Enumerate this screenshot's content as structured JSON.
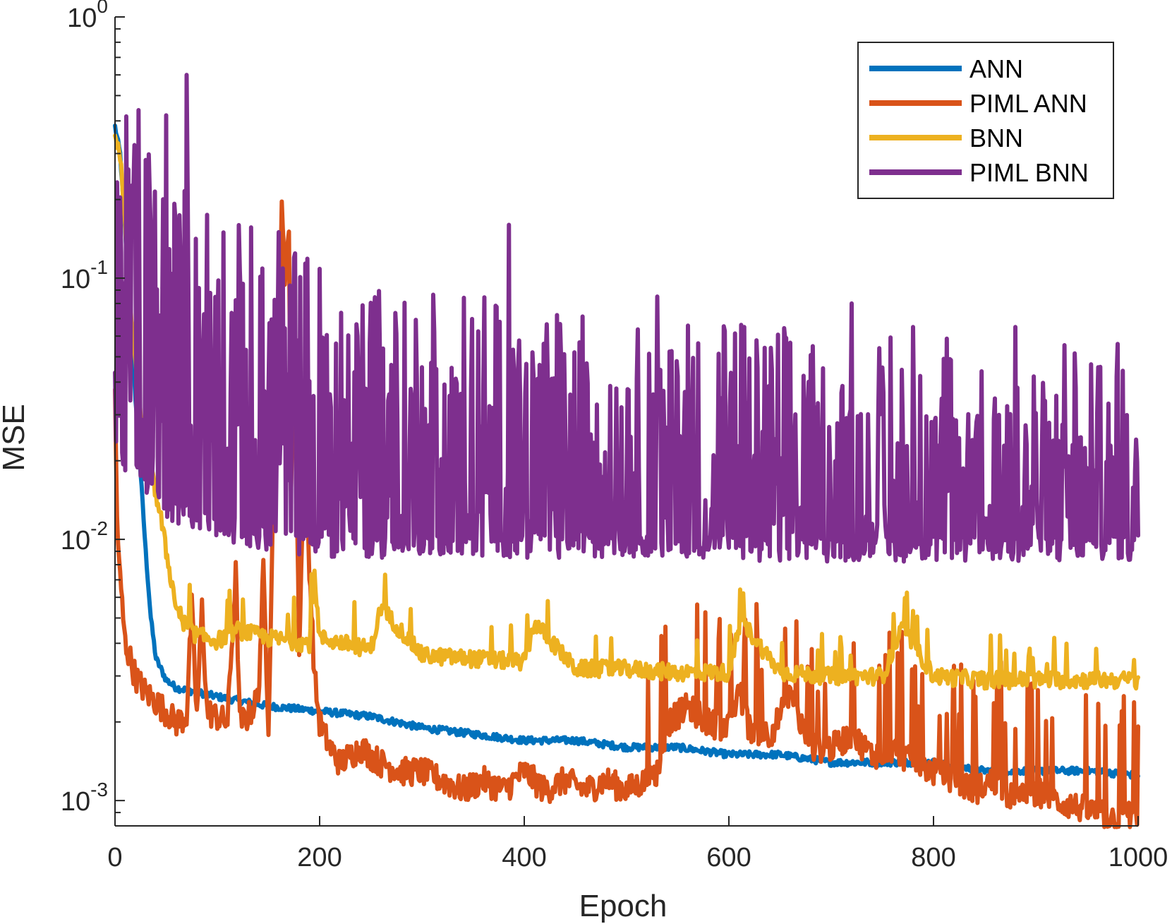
{
  "chart_data": {
    "type": "line",
    "title": "",
    "xlabel": "Epoch",
    "ylabel": "MSE",
    "xlim": [
      0,
      1000
    ],
    "ylim": [
      0.0008,
      1
    ],
    "yscale": "log",
    "grid": false,
    "legend_position": "top-right",
    "x_ticks": [
      {
        "value": 0,
        "label": "0"
      },
      {
        "value": 200,
        "label": "200"
      },
      {
        "value": 400,
        "label": "400"
      },
      {
        "value": 600,
        "label": "600"
      },
      {
        "value": 800,
        "label": "800"
      },
      {
        "value": 1000,
        "label": "1000"
      }
    ],
    "y_ticks": [
      {
        "value": 1,
        "base": "10",
        "exp": "0"
      },
      {
        "value": 0.1,
        "base": "10",
        "exp": "-1"
      },
      {
        "value": 0.01,
        "base": "10",
        "exp": "-2"
      },
      {
        "value": 0.001,
        "base": "10",
        "exp": "-3"
      }
    ],
    "series": [
      {
        "name": "ANN",
        "color": "#0072BD",
        "x": [
          0,
          5,
          10,
          15,
          20,
          25,
          30,
          35,
          40,
          50,
          60,
          80,
          100,
          150,
          200,
          250,
          300,
          350,
          400,
          450,
          500,
          550,
          600,
          650,
          700,
          750,
          800,
          850,
          900,
          950,
          1000
        ],
        "values": [
          0.38,
          0.3,
          0.15,
          0.07,
          0.035,
          0.018,
          0.009,
          0.005,
          0.0035,
          0.0029,
          0.0027,
          0.0026,
          0.0025,
          0.0023,
          0.0022,
          0.0021,
          0.0019,
          0.0018,
          0.0017,
          0.0017,
          0.0016,
          0.0016,
          0.0015,
          0.0015,
          0.0014,
          0.0014,
          0.0014,
          0.0013,
          0.0013,
          0.0013,
          0.00125
        ]
      },
      {
        "name": "PIML ANN",
        "color": "#D95319",
        "x": [
          0,
          2,
          5,
          10,
          15,
          20,
          30,
          40,
          50,
          60,
          70,
          75,
          80,
          85,
          90,
          100,
          110,
          118,
          122,
          130,
          140,
          145,
          150,
          155,
          160,
          163,
          166,
          170,
          172,
          175,
          180,
          185,
          190,
          195,
          200,
          210,
          220,
          240,
          260,
          280,
          300,
          320,
          340,
          360,
          380,
          400,
          420,
          440,
          460,
          480,
          500,
          520,
          530,
          540,
          560,
          580,
          600,
          610,
          620,
          640,
          660,
          680,
          700,
          720,
          740,
          760,
          780,
          800,
          820,
          840,
          860,
          880,
          900,
          920,
          940,
          960,
          980,
          995,
          1000
        ],
        "values": [
          0.035,
          0.012,
          0.007,
          0.004,
          0.0035,
          0.003,
          0.0026,
          0.0024,
          0.0022,
          0.002,
          0.0021,
          0.0055,
          0.0021,
          0.0055,
          0.0022,
          0.0021,
          0.002,
          0.0075,
          0.002,
          0.0021,
          0.0025,
          0.0075,
          0.002,
          0.016,
          0.06,
          0.21,
          0.09,
          0.17,
          0.015,
          0.06,
          0.004,
          0.02,
          0.008,
          0.003,
          0.002,
          0.0016,
          0.0014,
          0.0016,
          0.0014,
          0.0013,
          0.0013,
          0.0012,
          0.0011,
          0.0012,
          0.0011,
          0.0013,
          0.0011,
          0.0012,
          0.0011,
          0.0012,
          0.0011,
          0.0012,
          0.0013,
          0.002,
          0.0023,
          0.002,
          0.0019,
          0.0027,
          0.0019,
          0.0018,
          0.0025,
          0.0016,
          0.0016,
          0.0018,
          0.0015,
          0.0016,
          0.0014,
          0.0013,
          0.0012,
          0.0011,
          0.0012,
          0.001,
          0.0011,
          0.001,
          0.00095,
          0.0009,
          0.00085,
          0.0009,
          0.00085
        ]
      },
      {
        "name": "BNN",
        "color": "#EDB120",
        "x": [
          0,
          5,
          10,
          15,
          20,
          25,
          30,
          35,
          40,
          45,
          50,
          55,
          60,
          70,
          80,
          100,
          120,
          150,
          190,
          195,
          200,
          250,
          260,
          300,
          350,
          400,
          410,
          450,
          500,
          550,
          600,
          612,
          650,
          700,
          750,
          770,
          800,
          850,
          900,
          950,
          1000
        ],
        "values": [
          0.36,
          0.3,
          0.15,
          0.08,
          0.045,
          0.03,
          0.022,
          0.018,
          0.015,
          0.012,
          0.009,
          0.007,
          0.0055,
          0.0046,
          0.0043,
          0.0041,
          0.0045,
          0.0042,
          0.004,
          0.0075,
          0.0042,
          0.0038,
          0.0055,
          0.0036,
          0.0035,
          0.0034,
          0.0048,
          0.0032,
          0.0032,
          0.0031,
          0.0031,
          0.0049,
          0.0031,
          0.003,
          0.003,
          0.0046,
          0.003,
          0.0029,
          0.0029,
          0.0029,
          0.0029
        ]
      },
      {
        "name": "PIML BNN",
        "color": "#7E2F8E",
        "x": [
          0,
          50,
          100,
          150,
          200,
          300,
          400,
          500,
          600,
          700,
          800,
          900,
          1000
        ],
        "values": [
          0.17,
          0.06,
          0.045,
          0.035,
          0.03,
          0.022,
          0.02,
          0.018,
          0.016,
          0.015,
          0.014,
          0.014,
          0.012
        ],
        "min_values": [
          0.02,
          0.012,
          0.01,
          0.009,
          0.0085,
          0.0085,
          0.0085,
          0.0085,
          0.0083,
          0.0082,
          0.0082,
          0.0082,
          0.0082
        ],
        "peak_x": [
          50,
          70,
          160,
          385,
          530,
          615,
          720,
          780,
          880,
          980
        ],
        "peak_values": [
          0.42,
          0.6,
          0.15,
          0.16,
          0.085,
          0.065,
          0.08,
          0.065,
          0.065,
          0.056
        ]
      }
    ]
  }
}
